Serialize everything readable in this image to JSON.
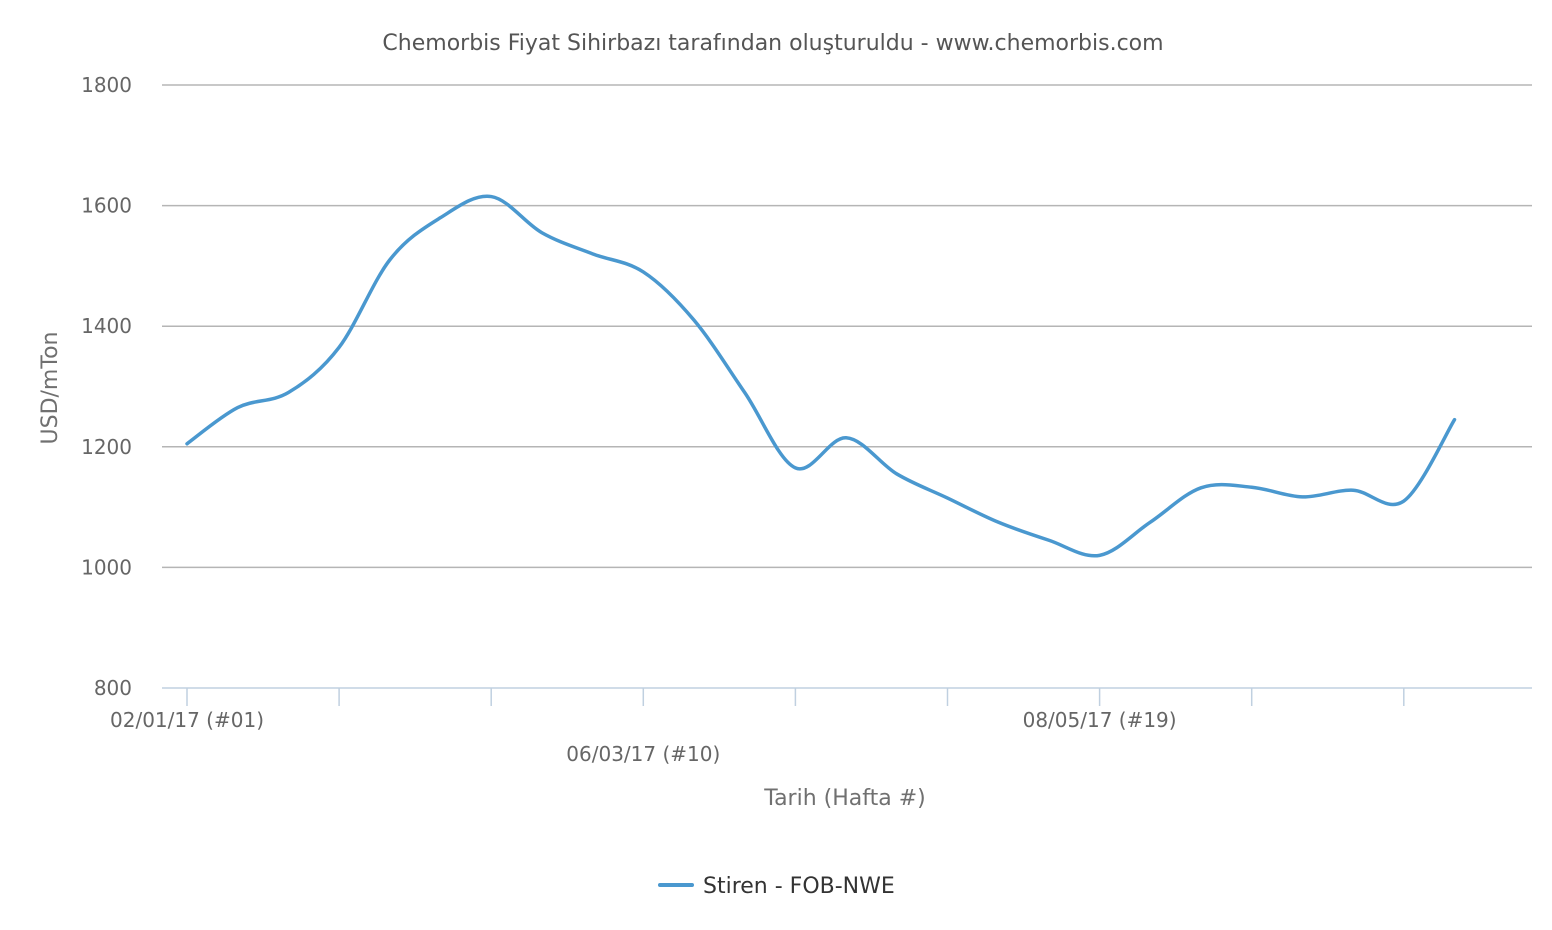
{
  "chart_data": {
    "type": "line",
    "title": "Chemorbis Fiyat Sihirbazı tarafından oluşturuldu - www.chemorbis.com",
    "xlabel": "Tarih (Hafta #)",
    "ylabel": "USD/mTon",
    "ylim": [
      800,
      1800
    ],
    "yticks": [
      800,
      1000,
      1200,
      1400,
      1600,
      1800
    ],
    "grid": true,
    "legend_position": "bottom",
    "x_tick_labels": [
      {
        "week": 1,
        "label": "02/01/17 (#01)"
      },
      {
        "week": 10,
        "label": "06/03/17 (#10)"
      },
      {
        "week": 19,
        "label": "08/05/17 (#19)"
      }
    ],
    "x_tick_marks": [
      1,
      4,
      7,
      10,
      13,
      16,
      19,
      22,
      25
    ],
    "x": [
      1,
      2,
      3,
      4,
      5,
      6,
      7,
      8,
      9,
      10,
      11,
      12,
      13,
      14,
      15,
      16,
      17,
      18,
      19,
      20,
      21,
      22,
      23,
      24,
      25,
      26
    ],
    "series": [
      {
        "name": "Stiren - FOB-NWE",
        "color": "#4a98cf",
        "values": [
          1205,
          1265,
          1290,
          1365,
          1510,
          1580,
          1615,
          1555,
          1520,
          1490,
          1410,
          1290,
          1165,
          1215,
          1155,
          1115,
          1075,
          1045,
          1020,
          1075,
          1132,
          1133,
          1117,
          1128,
          1110,
          1245
        ]
      }
    ]
  }
}
